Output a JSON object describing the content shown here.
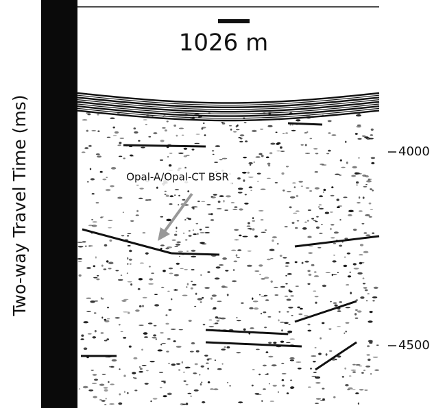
{
  "scale_bar": {
    "label": "1026 m"
  },
  "axis": {
    "label": "Two-way Travel Time (ms)",
    "ticks": [
      4000,
      4500
    ]
  },
  "annotation": {
    "label": "Opal-A/Opal-CT BSR"
  }
}
